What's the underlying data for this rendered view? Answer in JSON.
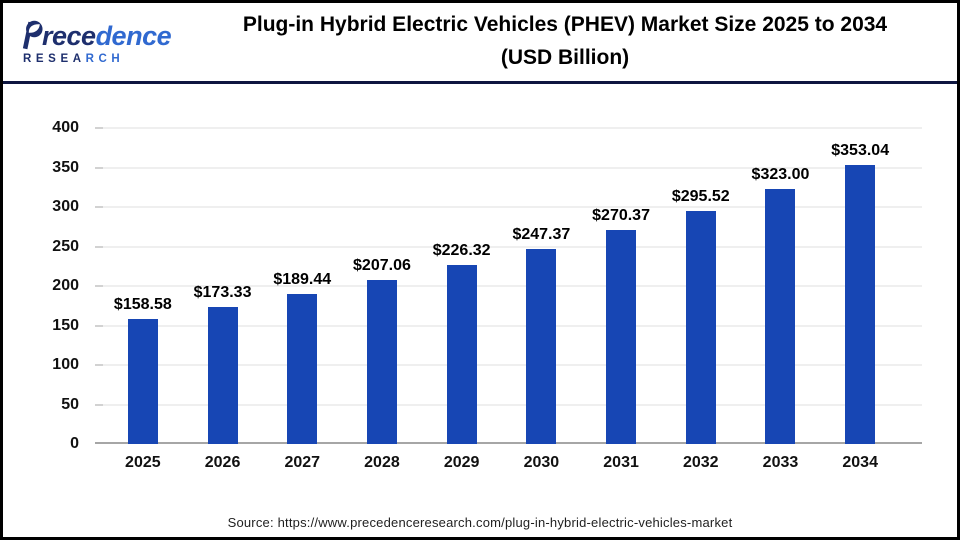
{
  "header": {
    "logo": {
      "word_dark": "rece",
      "word_blue": "dence",
      "sub_dark": "RESEA",
      "sub_blue": "RCH"
    },
    "title_line1": "Plug-in Hybrid Electric Vehicles (PHEV) Market Size 2025 to 2034",
    "title_line2": "(USD Billion)"
  },
  "chart_data": {
    "type": "bar",
    "title": "Plug-in Hybrid Electric Vehicles (PHEV) Market Size 2025 to 2034 (USD Billion)",
    "categories": [
      "2025",
      "2026",
      "2027",
      "2028",
      "2029",
      "2030",
      "2031",
      "2032",
      "2033",
      "2034"
    ],
    "values": [
      158.58,
      173.33,
      189.44,
      207.06,
      226.32,
      247.37,
      270.37,
      295.52,
      323.0,
      353.04
    ],
    "value_labels": [
      "$158.58",
      "$173.33",
      "$189.44",
      "$207.06",
      "$226.32",
      "$247.37",
      "$270.37",
      "$295.52",
      "$323.00",
      "$353.04"
    ],
    "xlabel": "",
    "ylabel": "",
    "ylim": [
      0,
      400
    ],
    "yticks": [
      0,
      50,
      100,
      150,
      200,
      250,
      300,
      350,
      400
    ],
    "grid": true,
    "legend": false,
    "bar_color": "#1746b4"
  },
  "footer": {
    "source_text": "Source: https://www.precedenceresearch.com/plug-in-hybrid-electric-vehicles-market"
  },
  "colors": {
    "bar": "#1746b4",
    "divider": "#0e1640",
    "logo_dark": "#1e2f6d",
    "logo_blue": "#3069d0",
    "gridline": "#efefef",
    "baseline": "#a6a6a6",
    "border": "#000000"
  }
}
